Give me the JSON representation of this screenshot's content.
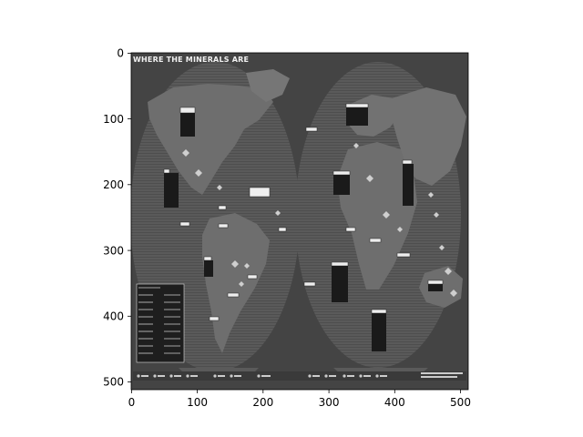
{
  "figure": {
    "image_title": "WHERE THE MINERALS ARE",
    "x_axis": {
      "range": [
        0,
        512
      ],
      "ticks": [
        0,
        100,
        200,
        300,
        400,
        500
      ]
    },
    "y_axis": {
      "range": [
        512,
        0
      ],
      "inverted": true,
      "ticks": [
        0,
        100,
        200,
        300,
        400,
        500
      ]
    },
    "colors": {
      "map_background": "#4a4a4a",
      "hemisphere_fill": "#5b5b5b",
      "label_box": "#f0f0f0",
      "frame": "#000000"
    }
  }
}
